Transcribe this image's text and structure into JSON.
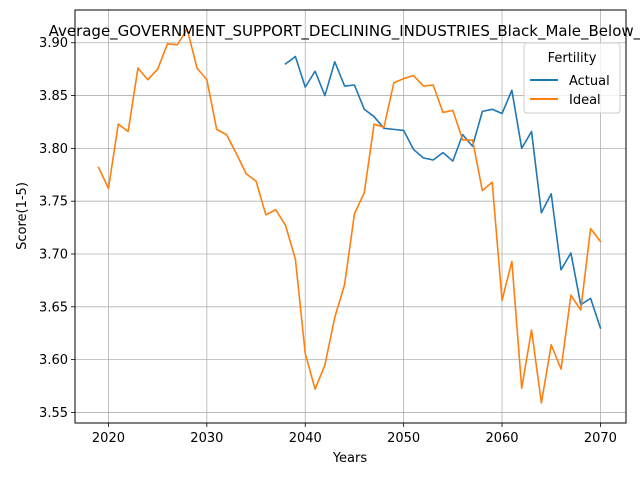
{
  "chart_data": {
    "type": "line",
    "title": "Average_GOVERNMENT_SUPPORT_DECLINING_INDUSTRIES_Black_Male_Below_A",
    "xlabel": "Years",
    "ylabel": "Score(1-5)",
    "xlim": [
      2016.6,
      2072.6
    ],
    "ylim": [
      3.54,
      3.931
    ],
    "xticks": [
      2020,
      2030,
      2040,
      2050,
      2060,
      2070
    ],
    "xtick_labels": [
      "2020",
      "2030",
      "2040",
      "2050",
      "2060",
      "2070"
    ],
    "yticks": [
      3.55,
      3.6,
      3.65,
      3.7,
      3.75,
      3.8,
      3.85,
      3.9
    ],
    "ytick_labels": [
      "3.55",
      "3.60",
      "3.65",
      "3.70",
      "3.75",
      "3.80",
      "3.85",
      "3.90"
    ],
    "grid": true,
    "legend": {
      "title": "Fertility",
      "placement": "top-right"
    },
    "series": [
      {
        "name": "Actual",
        "color": "#1f77b4",
        "x": [
          2038,
          2039,
          2040,
          2041,
          2042,
          2043,
          2044,
          2045,
          2046,
          2047,
          2048,
          2049,
          2050,
          2051,
          2052,
          2053,
          2054,
          2055,
          2056,
          2057,
          2058,
          2059,
          2060,
          2061,
          2062,
          2063,
          2064,
          2065,
          2066,
          2067,
          2068,
          2069,
          2070
        ],
        "values": [
          3.88,
          3.887,
          3.858,
          3.873,
          3.85,
          3.882,
          3.859,
          3.86,
          3.837,
          3.83,
          3.819,
          3.818,
          3.817,
          3.799,
          3.791,
          3.789,
          3.796,
          3.788,
          3.813,
          3.802,
          3.835,
          3.837,
          3.833,
          3.855,
          3.8,
          3.816,
          3.739,
          3.757,
          3.685,
          3.701,
          3.652,
          3.658,
          3.63
        ]
      },
      {
        "name": "Ideal",
        "color": "#ff7f0e",
        "x": [
          2019,
          2020,
          2021,
          2022,
          2023,
          2024,
          2025,
          2026,
          2027,
          2028,
          2029,
          2030,
          2031,
          2032,
          2033,
          2034,
          2035,
          2036,
          2037,
          2038,
          2039,
          2040,
          2041,
          2042,
          2043,
          2044,
          2045,
          2046,
          2047,
          2048,
          2049,
          2050,
          2051,
          2052,
          2053,
          2054,
          2055,
          2056,
          2057,
          2058,
          2059,
          2060,
          2061,
          2062,
          2063,
          2064,
          2065,
          2066,
          2067,
          2068,
          2069,
          2070
        ],
        "values": [
          3.782,
          3.762,
          3.823,
          3.816,
          3.876,
          3.865,
          3.875,
          3.899,
          3.898,
          3.913,
          3.876,
          3.865,
          3.818,
          3.813,
          3.795,
          3.776,
          3.769,
          3.737,
          3.742,
          3.727,
          3.695,
          3.606,
          3.572,
          3.595,
          3.64,
          3.671,
          3.738,
          3.758,
          3.823,
          3.82,
          3.862,
          3.866,
          3.869,
          3.859,
          3.86,
          3.834,
          3.836,
          3.808,
          3.808,
          3.76,
          3.768,
          3.656,
          3.693,
          3.573,
          3.628,
          3.559,
          3.614,
          3.591,
          3.661,
          3.647,
          3.724,
          3.712
        ]
      }
    ]
  }
}
